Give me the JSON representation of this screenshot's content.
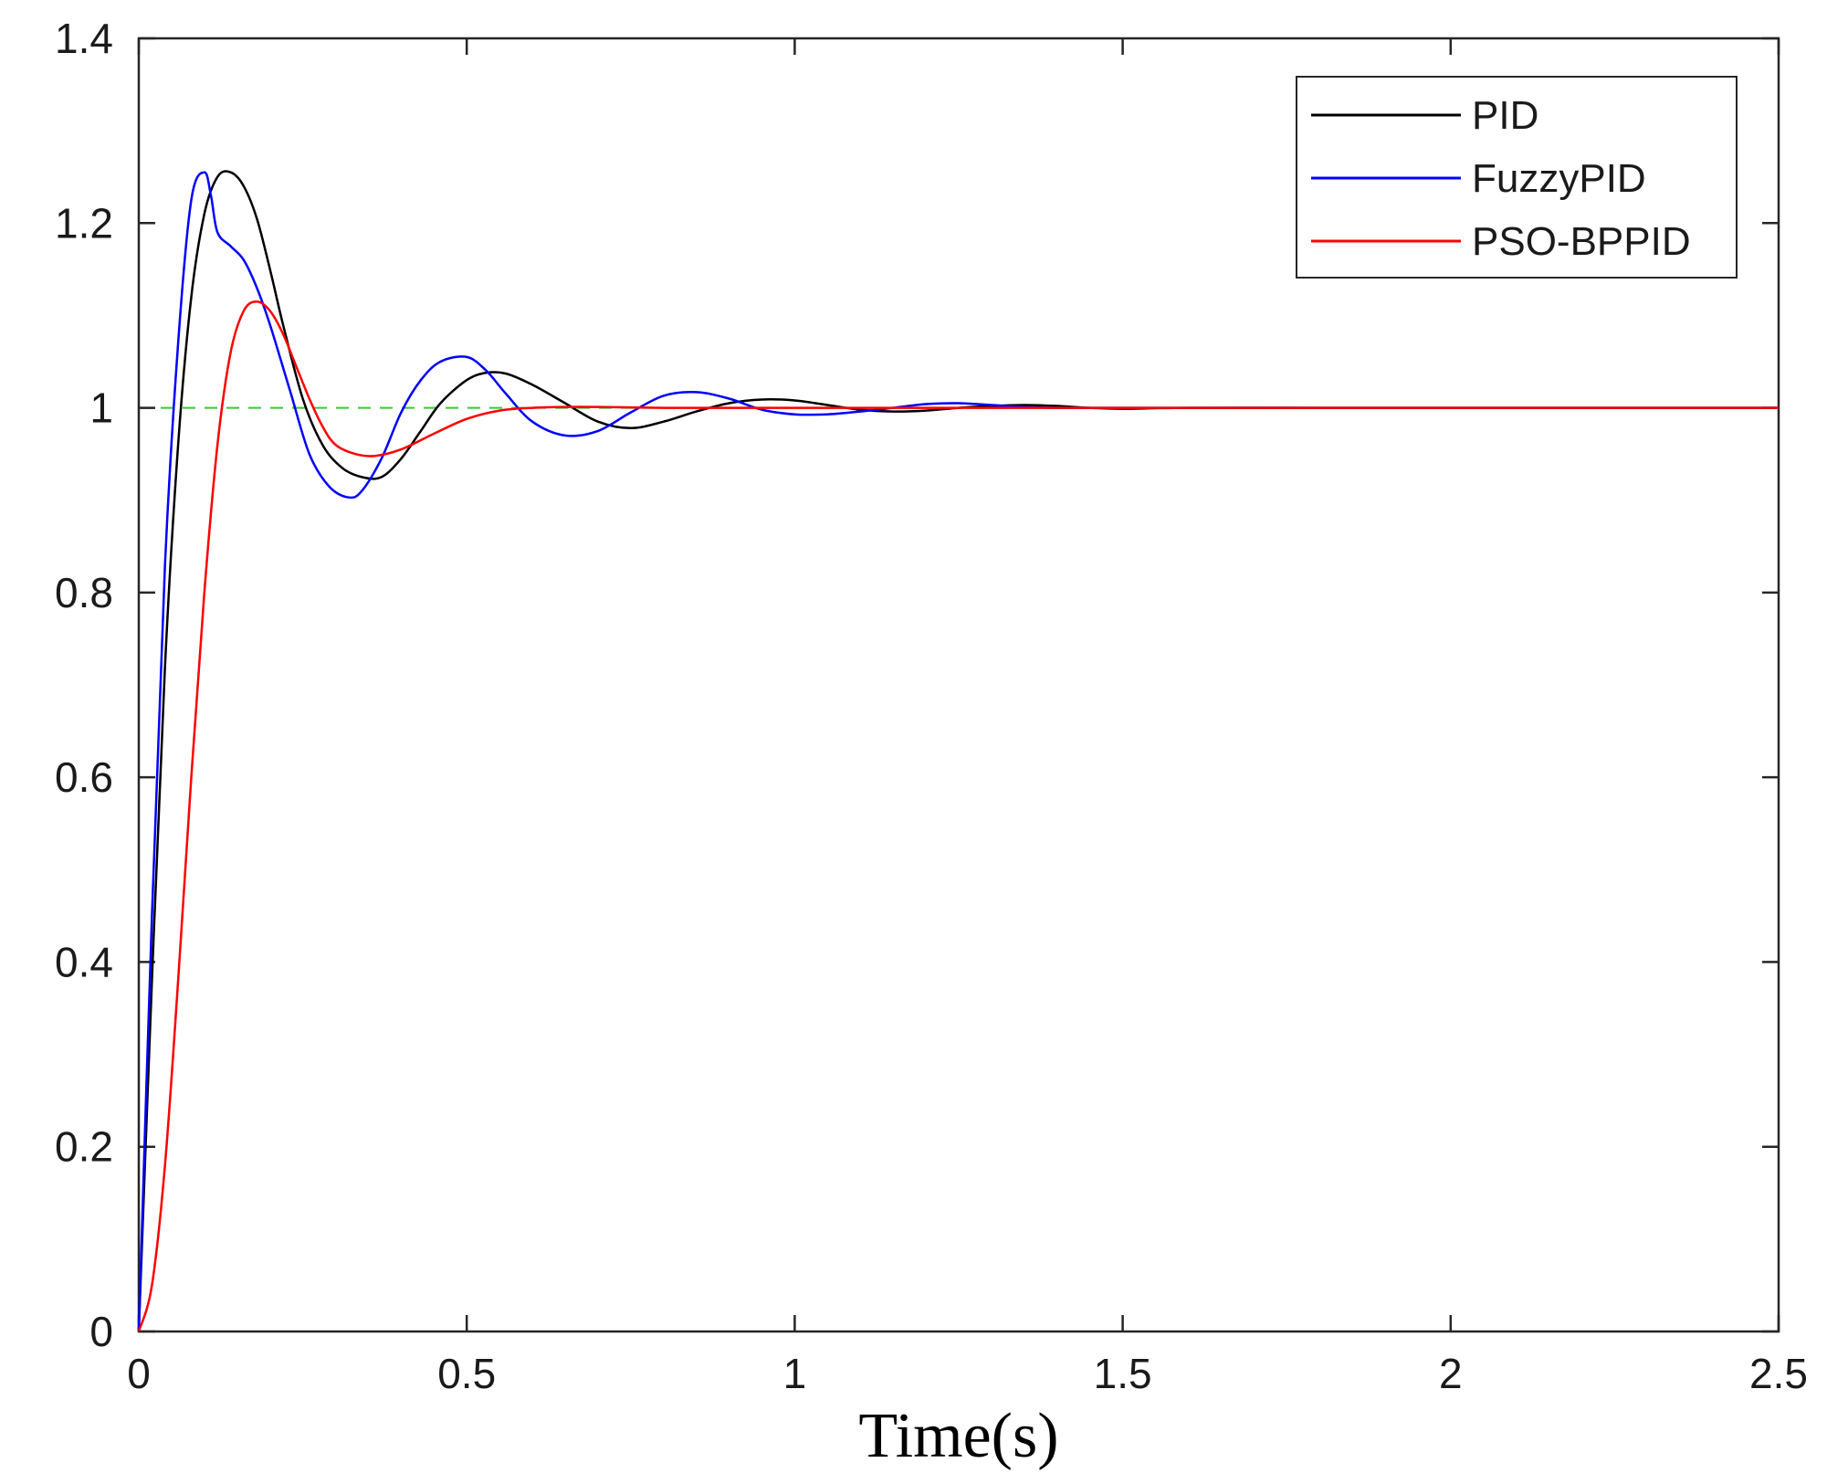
{
  "chart_data": {
    "type": "line",
    "title": "",
    "xlabel": "Time(s)",
    "ylabel": "",
    "xlim": [
      0,
      2.5
    ],
    "ylim": [
      0,
      1.4
    ],
    "xticks": [
      0,
      0.5,
      1,
      1.5,
      2,
      2.5
    ],
    "xtick_labels": [
      "0",
      "0.5",
      "1",
      "1.5",
      "2",
      "2.5"
    ],
    "yticks": [
      0,
      0.2,
      0.4,
      0.6,
      0.8,
      1.0,
      1.2,
      1.4
    ],
    "ytick_labels": [
      "0",
      "0.2",
      "0.4",
      "0.6",
      "0.8",
      "1",
      "1.2",
      "1.4"
    ],
    "grid": false,
    "legend_position": "top-right",
    "reference_line": {
      "y": 1.0,
      "color": "#33cc33",
      "style": "dashed"
    },
    "series": [
      {
        "name": "PID",
        "color": "#000000",
        "x": [
          0,
          0.02,
          0.04,
          0.06,
          0.08,
          0.1,
          0.12,
          0.14,
          0.16,
          0.18,
          0.2,
          0.22,
          0.25,
          0.28,
          0.31,
          0.34,
          0.37,
          0.4,
          0.43,
          0.46,
          0.5,
          0.53,
          0.56,
          0.6,
          0.65,
          0.7,
          0.75,
          0.8,
          0.85,
          0.9,
          0.95,
          1.0,
          1.05,
          1.1,
          1.15,
          1.2,
          1.25,
          1.3,
          1.35,
          1.4,
          1.45,
          1.5,
          1.6,
          1.8,
          2.0,
          2.5
        ],
        "y": [
          0,
          0.38,
          0.72,
          0.96,
          1.12,
          1.21,
          1.25,
          1.255,
          1.24,
          1.205,
          1.15,
          1.09,
          1.01,
          0.96,
          0.935,
          0.925,
          0.925,
          0.945,
          0.975,
          1.005,
          1.03,
          1.038,
          1.037,
          1.025,
          1.005,
          0.985,
          0.978,
          0.985,
          0.996,
          1.005,
          1.009,
          1.008,
          1.003,
          0.998,
          0.996,
          0.997,
          1.0,
          1.002,
          1.003,
          1.002,
          1.0,
          0.999,
          1.0,
          1.0,
          1.0,
          1.0
        ]
      },
      {
        "name": "FuzzyPID",
        "color": "#0000ff",
        "x": [
          0,
          0.02,
          0.04,
          0.06,
          0.08,
          0.1,
          0.11,
          0.12,
          0.14,
          0.16,
          0.18,
          0.2,
          0.23,
          0.26,
          0.29,
          0.32,
          0.34,
          0.37,
          0.4,
          0.43,
          0.46,
          0.5,
          0.53,
          0.56,
          0.6,
          0.65,
          0.7,
          0.75,
          0.8,
          0.85,
          0.9,
          0.95,
          1.0,
          1.05,
          1.1,
          1.15,
          1.2,
          1.25,
          1.3,
          1.35,
          1.4,
          1.5,
          1.6,
          2.0,
          2.5
        ],
        "y": [
          0,
          0.45,
          0.83,
          1.07,
          1.225,
          1.255,
          1.23,
          1.19,
          1.175,
          1.16,
          1.13,
          1.09,
          1.02,
          0.95,
          0.915,
          0.903,
          0.91,
          0.945,
          0.995,
          1.03,
          1.05,
          1.055,
          1.04,
          1.015,
          0.985,
          0.97,
          0.975,
          0.995,
          1.013,
          1.017,
          1.01,
          0.998,
          0.993,
          0.993,
          0.996,
          1.0,
          1.004,
          1.005,
          1.003,
          1.001,
          1.0,
          1.0,
          1.0,
          1.0,
          1.0
        ]
      },
      {
        "name": "PSO-BPPID",
        "color": "#ff0000",
        "x": [
          0,
          0.02,
          0.04,
          0.06,
          0.08,
          0.1,
          0.12,
          0.14,
          0.16,
          0.18,
          0.2,
          0.22,
          0.24,
          0.26,
          0.28,
          0.3,
          0.33,
          0.36,
          0.4,
          0.45,
          0.5,
          0.55,
          0.6,
          0.65,
          0.7,
          0.8,
          0.9,
          1.0,
          1.2,
          1.5,
          2.0,
          2.5
        ],
        "y": [
          0,
          0.05,
          0.18,
          0.38,
          0.6,
          0.8,
          0.96,
          1.06,
          1.105,
          1.115,
          1.105,
          1.08,
          1.045,
          1.01,
          0.98,
          0.96,
          0.95,
          0.948,
          0.955,
          0.972,
          0.988,
          0.997,
          1.0,
          1.001,
          1.001,
          1.0,
          1.0,
          1.0,
          1.0,
          1.0,
          1.0,
          1.0
        ]
      }
    ]
  }
}
